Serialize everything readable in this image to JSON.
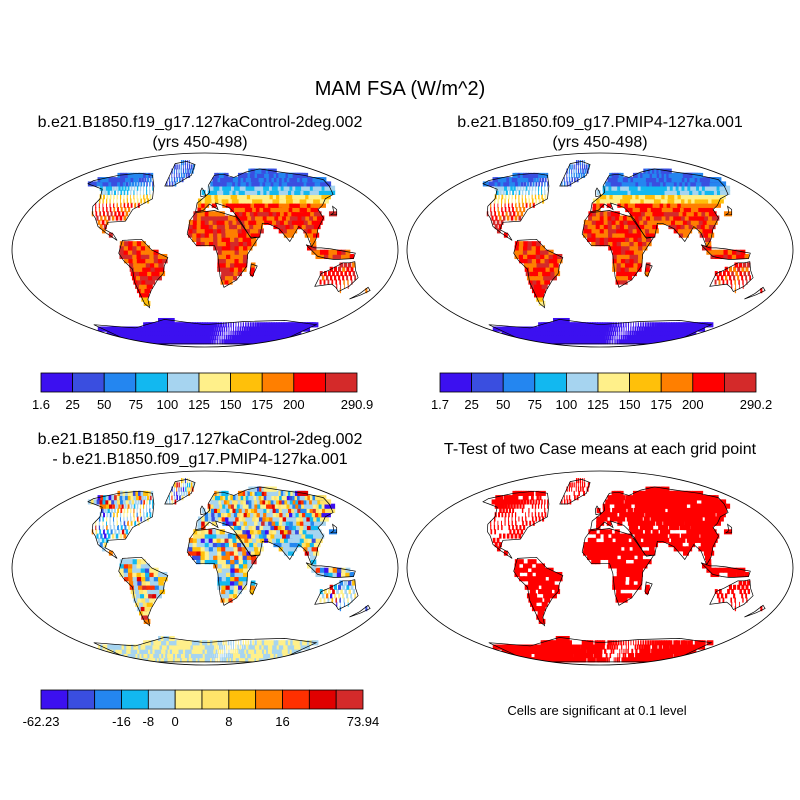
{
  "title": "MAM FSA (W/m^2)",
  "colors": {
    "ocean": "#ffffff",
    "outline": "#000000",
    "sig": "#ff0000",
    "diff_bg": "#a8d6f2"
  },
  "chart_data": [
    {
      "type": "heatmap",
      "panel": "top-left",
      "title_line1": "b.e21.B1850.f19_g17.127kaControl-2deg.002",
      "title_line2": "(yrs 450-498)",
      "colorbar": {
        "colors": [
          "#3c10f0",
          "#3a4ee0",
          "#2486f0",
          "#12b8f0",
          "#a6d4f0",
          "#fff08a",
          "#ffc00a",
          "#ff7f00",
          "#ff0000",
          "#d42a2a"
        ],
        "tick_labels": [
          "1.6",
          "25",
          "50",
          "75",
          "100",
          "125",
          "150",
          "175",
          "200",
          "290.9"
        ],
        "min": 1.6,
        "max": 290.9
      }
    },
    {
      "type": "heatmap",
      "panel": "top-right",
      "title_line1": "b.e21.B1850.f09_g17.PMIP4-127ka.001",
      "title_line2": "(yrs 450-498)",
      "colorbar": {
        "colors": [
          "#3c10f0",
          "#3a4ee0",
          "#2486f0",
          "#12b8f0",
          "#a6d4f0",
          "#fff08a",
          "#ffc00a",
          "#ff7f00",
          "#ff0000",
          "#d42a2a"
        ],
        "tick_labels": [
          "1.7",
          "25",
          "50",
          "75",
          "100",
          "125",
          "150",
          "175",
          "200",
          "290.2"
        ],
        "min": 1.7,
        "max": 290.2
      }
    },
    {
      "type": "heatmap",
      "panel": "bottom-left",
      "title_line1": "b.e21.B1850.f19_g17.127kaControl-2deg.002",
      "title_line2": "- b.e21.B1850.f09_g17.PMIP4-127ka.001",
      "colorbar": {
        "colors": [
          "#3c10f0",
          "#3a4ee0",
          "#2486f0",
          "#12b8f0",
          "#a6d4f0",
          "#fff08a",
          "#ffe46a",
          "#ffc00a",
          "#ff7f00",
          "#ff3000",
          "#e00000",
          "#d42a2a"
        ],
        "tick_labels": [
          "-62.23",
          "-16",
          "-8",
          "0",
          "8",
          "16",
          "73.94"
        ],
        "min": -62.23,
        "max": 73.94
      }
    },
    {
      "type": "heatmap",
      "panel": "bottom-right",
      "title_line1": "T-Test of two Case means at each grid point",
      "note": "Cells are significant at 0.1 level"
    }
  ]
}
